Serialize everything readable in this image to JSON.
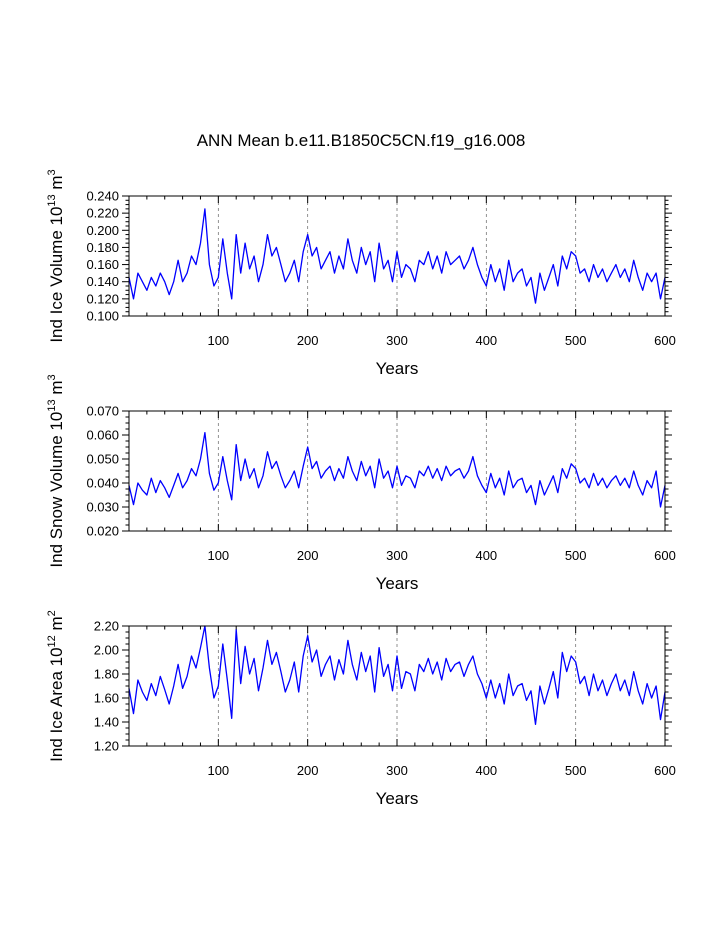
{
  "figure": {
    "title": "ANN Mean b.e11.B1850C5CN.f19_g16.008"
  },
  "chart_data": [
    {
      "type": "line",
      "title": "",
      "ylabel_main": "Ind Ice Volume 10",
      "ylabel_exp": "13",
      "ylabel_unit": "m",
      "ylabel_unit_exp": "3",
      "xlabel": "Years",
      "xlim": [
        0,
        600
      ],
      "ylim": [
        0.1,
        0.24
      ],
      "xticks": [
        100,
        200,
        300,
        400,
        500,
        600
      ],
      "xtick_labels": [
        "100",
        "200",
        "300",
        "400",
        "500",
        "600"
      ],
      "yticks": [
        0.1,
        0.12,
        0.14,
        0.16,
        0.18,
        0.2,
        0.22,
        0.24
      ],
      "ytick_labels": [
        "0.100",
        "0.120",
        "0.140",
        "0.160",
        "0.180",
        "0.200",
        "0.220",
        "0.240"
      ],
      "gridlines_x": [
        100,
        200,
        300,
        400,
        500
      ],
      "series_color": "#0000ff",
      "x": [
        0,
        5,
        10,
        15,
        20,
        25,
        30,
        35,
        40,
        45,
        50,
        55,
        60,
        65,
        70,
        75,
        80,
        85,
        90,
        95,
        100,
        105,
        110,
        115,
        120,
        125,
        130,
        135,
        140,
        145,
        150,
        155,
        160,
        165,
        170,
        175,
        180,
        185,
        190,
        195,
        200,
        205,
        210,
        215,
        220,
        225,
        230,
        235,
        240,
        245,
        250,
        255,
        260,
        265,
        270,
        275,
        280,
        285,
        290,
        295,
        300,
        305,
        310,
        315,
        320,
        325,
        330,
        335,
        340,
        345,
        350,
        355,
        360,
        365,
        370,
        375,
        380,
        385,
        390,
        395,
        400,
        405,
        410,
        415,
        420,
        425,
        430,
        435,
        440,
        445,
        450,
        455,
        460,
        465,
        470,
        475,
        480,
        485,
        490,
        495,
        500,
        505,
        510,
        515,
        520,
        525,
        530,
        535,
        540,
        545,
        550,
        555,
        560,
        565,
        570,
        575,
        580,
        585,
        590,
        595,
        600
      ],
      "values": [
        0.145,
        0.12,
        0.15,
        0.14,
        0.13,
        0.145,
        0.135,
        0.15,
        0.14,
        0.125,
        0.14,
        0.165,
        0.14,
        0.15,
        0.17,
        0.16,
        0.185,
        0.225,
        0.16,
        0.135,
        0.145,
        0.19,
        0.15,
        0.12,
        0.195,
        0.15,
        0.185,
        0.155,
        0.17,
        0.14,
        0.16,
        0.195,
        0.17,
        0.18,
        0.16,
        0.14,
        0.15,
        0.165,
        0.14,
        0.175,
        0.195,
        0.17,
        0.18,
        0.155,
        0.165,
        0.175,
        0.15,
        0.17,
        0.155,
        0.19,
        0.165,
        0.15,
        0.18,
        0.16,
        0.175,
        0.14,
        0.185,
        0.155,
        0.165,
        0.14,
        0.175,
        0.145,
        0.16,
        0.155,
        0.14,
        0.165,
        0.16,
        0.175,
        0.155,
        0.17,
        0.15,
        0.175,
        0.16,
        0.165,
        0.17,
        0.155,
        0.165,
        0.18,
        0.16,
        0.145,
        0.135,
        0.16,
        0.14,
        0.155,
        0.13,
        0.165,
        0.14,
        0.15,
        0.155,
        0.135,
        0.145,
        0.115,
        0.15,
        0.13,
        0.145,
        0.16,
        0.135,
        0.17,
        0.155,
        0.175,
        0.17,
        0.15,
        0.155,
        0.14,
        0.16,
        0.145,
        0.155,
        0.14,
        0.15,
        0.16,
        0.145,
        0.155,
        0.14,
        0.165,
        0.145,
        0.13,
        0.15,
        0.14,
        0.15,
        0.12,
        0.145
      ]
    },
    {
      "type": "line",
      "title": "",
      "ylabel_main": "Ind Snow Volume 10",
      "ylabel_exp": "13",
      "ylabel_unit": "m",
      "ylabel_unit_exp": "3",
      "xlabel": "Years",
      "xlim": [
        0,
        600
      ],
      "ylim": [
        0.02,
        0.07
      ],
      "xticks": [
        100,
        200,
        300,
        400,
        500,
        600
      ],
      "xtick_labels": [
        "100",
        "200",
        "300",
        "400",
        "500",
        "600"
      ],
      "yticks": [
        0.02,
        0.03,
        0.04,
        0.05,
        0.06,
        0.07
      ],
      "ytick_labels": [
        "0.020",
        "0.030",
        "0.040",
        "0.050",
        "0.060",
        "0.070"
      ],
      "gridlines_x": [
        100,
        200,
        300,
        400,
        500
      ],
      "series_color": "#0000ff",
      "x": [
        0,
        5,
        10,
        15,
        20,
        25,
        30,
        35,
        40,
        45,
        50,
        55,
        60,
        65,
        70,
        75,
        80,
        85,
        90,
        95,
        100,
        105,
        110,
        115,
        120,
        125,
        130,
        135,
        140,
        145,
        150,
        155,
        160,
        165,
        170,
        175,
        180,
        185,
        190,
        195,
        200,
        205,
        210,
        215,
        220,
        225,
        230,
        235,
        240,
        245,
        250,
        255,
        260,
        265,
        270,
        275,
        280,
        285,
        290,
        295,
        300,
        305,
        310,
        315,
        320,
        325,
        330,
        335,
        340,
        345,
        350,
        355,
        360,
        365,
        370,
        375,
        380,
        385,
        390,
        395,
        400,
        405,
        410,
        415,
        420,
        425,
        430,
        435,
        440,
        445,
        450,
        455,
        460,
        465,
        470,
        475,
        480,
        485,
        490,
        495,
        500,
        505,
        510,
        515,
        520,
        525,
        530,
        535,
        540,
        545,
        550,
        555,
        560,
        565,
        570,
        575,
        580,
        585,
        590,
        595,
        600
      ],
      "values": [
        0.039,
        0.031,
        0.04,
        0.037,
        0.035,
        0.042,
        0.036,
        0.041,
        0.038,
        0.034,
        0.039,
        0.044,
        0.038,
        0.041,
        0.046,
        0.043,
        0.05,
        0.061,
        0.044,
        0.037,
        0.04,
        0.051,
        0.041,
        0.033,
        0.056,
        0.041,
        0.05,
        0.042,
        0.046,
        0.038,
        0.043,
        0.053,
        0.046,
        0.049,
        0.043,
        0.038,
        0.041,
        0.045,
        0.038,
        0.047,
        0.055,
        0.046,
        0.049,
        0.042,
        0.045,
        0.047,
        0.041,
        0.046,
        0.042,
        0.051,
        0.045,
        0.041,
        0.049,
        0.043,
        0.047,
        0.038,
        0.05,
        0.042,
        0.045,
        0.038,
        0.047,
        0.039,
        0.043,
        0.042,
        0.038,
        0.045,
        0.043,
        0.047,
        0.042,
        0.046,
        0.041,
        0.047,
        0.043,
        0.045,
        0.046,
        0.042,
        0.045,
        0.051,
        0.043,
        0.039,
        0.036,
        0.044,
        0.038,
        0.042,
        0.035,
        0.045,
        0.038,
        0.041,
        0.042,
        0.036,
        0.039,
        0.031,
        0.041,
        0.035,
        0.039,
        0.043,
        0.036,
        0.046,
        0.042,
        0.048,
        0.046,
        0.04,
        0.042,
        0.038,
        0.044,
        0.039,
        0.042,
        0.038,
        0.041,
        0.043,
        0.039,
        0.042,
        0.038,
        0.045,
        0.039,
        0.035,
        0.041,
        0.038,
        0.045,
        0.03,
        0.039
      ]
    },
    {
      "type": "line",
      "title": "",
      "ylabel_main": "Ind Ice Area 10",
      "ylabel_exp": "12",
      "ylabel_unit": "m",
      "ylabel_unit_exp": "2",
      "xlabel": "Years",
      "xlim": [
        0,
        600
      ],
      "ylim": [
        1.2,
        2.2
      ],
      "xticks": [
        100,
        200,
        300,
        400,
        500,
        600
      ],
      "xtick_labels": [
        "100",
        "200",
        "300",
        "400",
        "500",
        "600"
      ],
      "yticks": [
        1.2,
        1.4,
        1.6,
        1.8,
        2.0,
        2.2
      ],
      "ytick_labels": [
        "1.20",
        "1.40",
        "1.60",
        "1.80",
        "2.00",
        "2.20"
      ],
      "gridlines_x": [
        100,
        200,
        300,
        400,
        500
      ],
      "series_color": "#0000ff",
      "x": [
        0,
        5,
        10,
        15,
        20,
        25,
        30,
        35,
        40,
        45,
        50,
        55,
        60,
        65,
        70,
        75,
        80,
        85,
        90,
        95,
        100,
        105,
        110,
        115,
        120,
        125,
        130,
        135,
        140,
        145,
        150,
        155,
        160,
        165,
        170,
        175,
        180,
        185,
        190,
        195,
        200,
        205,
        210,
        215,
        220,
        225,
        230,
        235,
        240,
        245,
        250,
        255,
        260,
        265,
        270,
        275,
        280,
        285,
        290,
        295,
        300,
        305,
        310,
        315,
        320,
        325,
        330,
        335,
        340,
        345,
        350,
        355,
        360,
        365,
        370,
        375,
        380,
        385,
        390,
        395,
        400,
        405,
        410,
        415,
        420,
        425,
        430,
        435,
        440,
        445,
        450,
        455,
        460,
        465,
        470,
        475,
        480,
        485,
        490,
        495,
        500,
        505,
        510,
        515,
        520,
        525,
        530,
        535,
        540,
        545,
        550,
        555,
        560,
        565,
        570,
        575,
        580,
        585,
        590,
        595,
        600
      ],
      "values": [
        1.68,
        1.47,
        1.75,
        1.65,
        1.58,
        1.72,
        1.62,
        1.78,
        1.67,
        1.55,
        1.7,
        1.88,
        1.68,
        1.78,
        1.95,
        1.85,
        2.02,
        2.2,
        1.85,
        1.6,
        1.7,
        2.05,
        1.75,
        1.43,
        2.17,
        1.72,
        2.03,
        1.8,
        1.93,
        1.66,
        1.85,
        2.08,
        1.88,
        1.98,
        1.82,
        1.65,
        1.75,
        1.9,
        1.65,
        1.95,
        2.12,
        1.9,
        2.0,
        1.78,
        1.88,
        1.95,
        1.75,
        1.92,
        1.8,
        2.08,
        1.88,
        1.75,
        1.98,
        1.82,
        1.95,
        1.65,
        2.02,
        1.78,
        1.88,
        1.66,
        1.95,
        1.68,
        1.82,
        1.8,
        1.66,
        1.88,
        1.82,
        1.93,
        1.8,
        1.9,
        1.75,
        1.93,
        1.82,
        1.88,
        1.9,
        1.78,
        1.88,
        1.95,
        1.8,
        1.72,
        1.6,
        1.75,
        1.6,
        1.72,
        1.55,
        1.8,
        1.62,
        1.7,
        1.72,
        1.58,
        1.66,
        1.38,
        1.7,
        1.55,
        1.68,
        1.82,
        1.6,
        1.98,
        1.82,
        1.95,
        1.9,
        1.72,
        1.78,
        1.62,
        1.8,
        1.66,
        1.75,
        1.62,
        1.72,
        1.8,
        1.66,
        1.75,
        1.62,
        1.82,
        1.66,
        1.55,
        1.72,
        1.6,
        1.7,
        1.42,
        1.65
      ]
    }
  ]
}
